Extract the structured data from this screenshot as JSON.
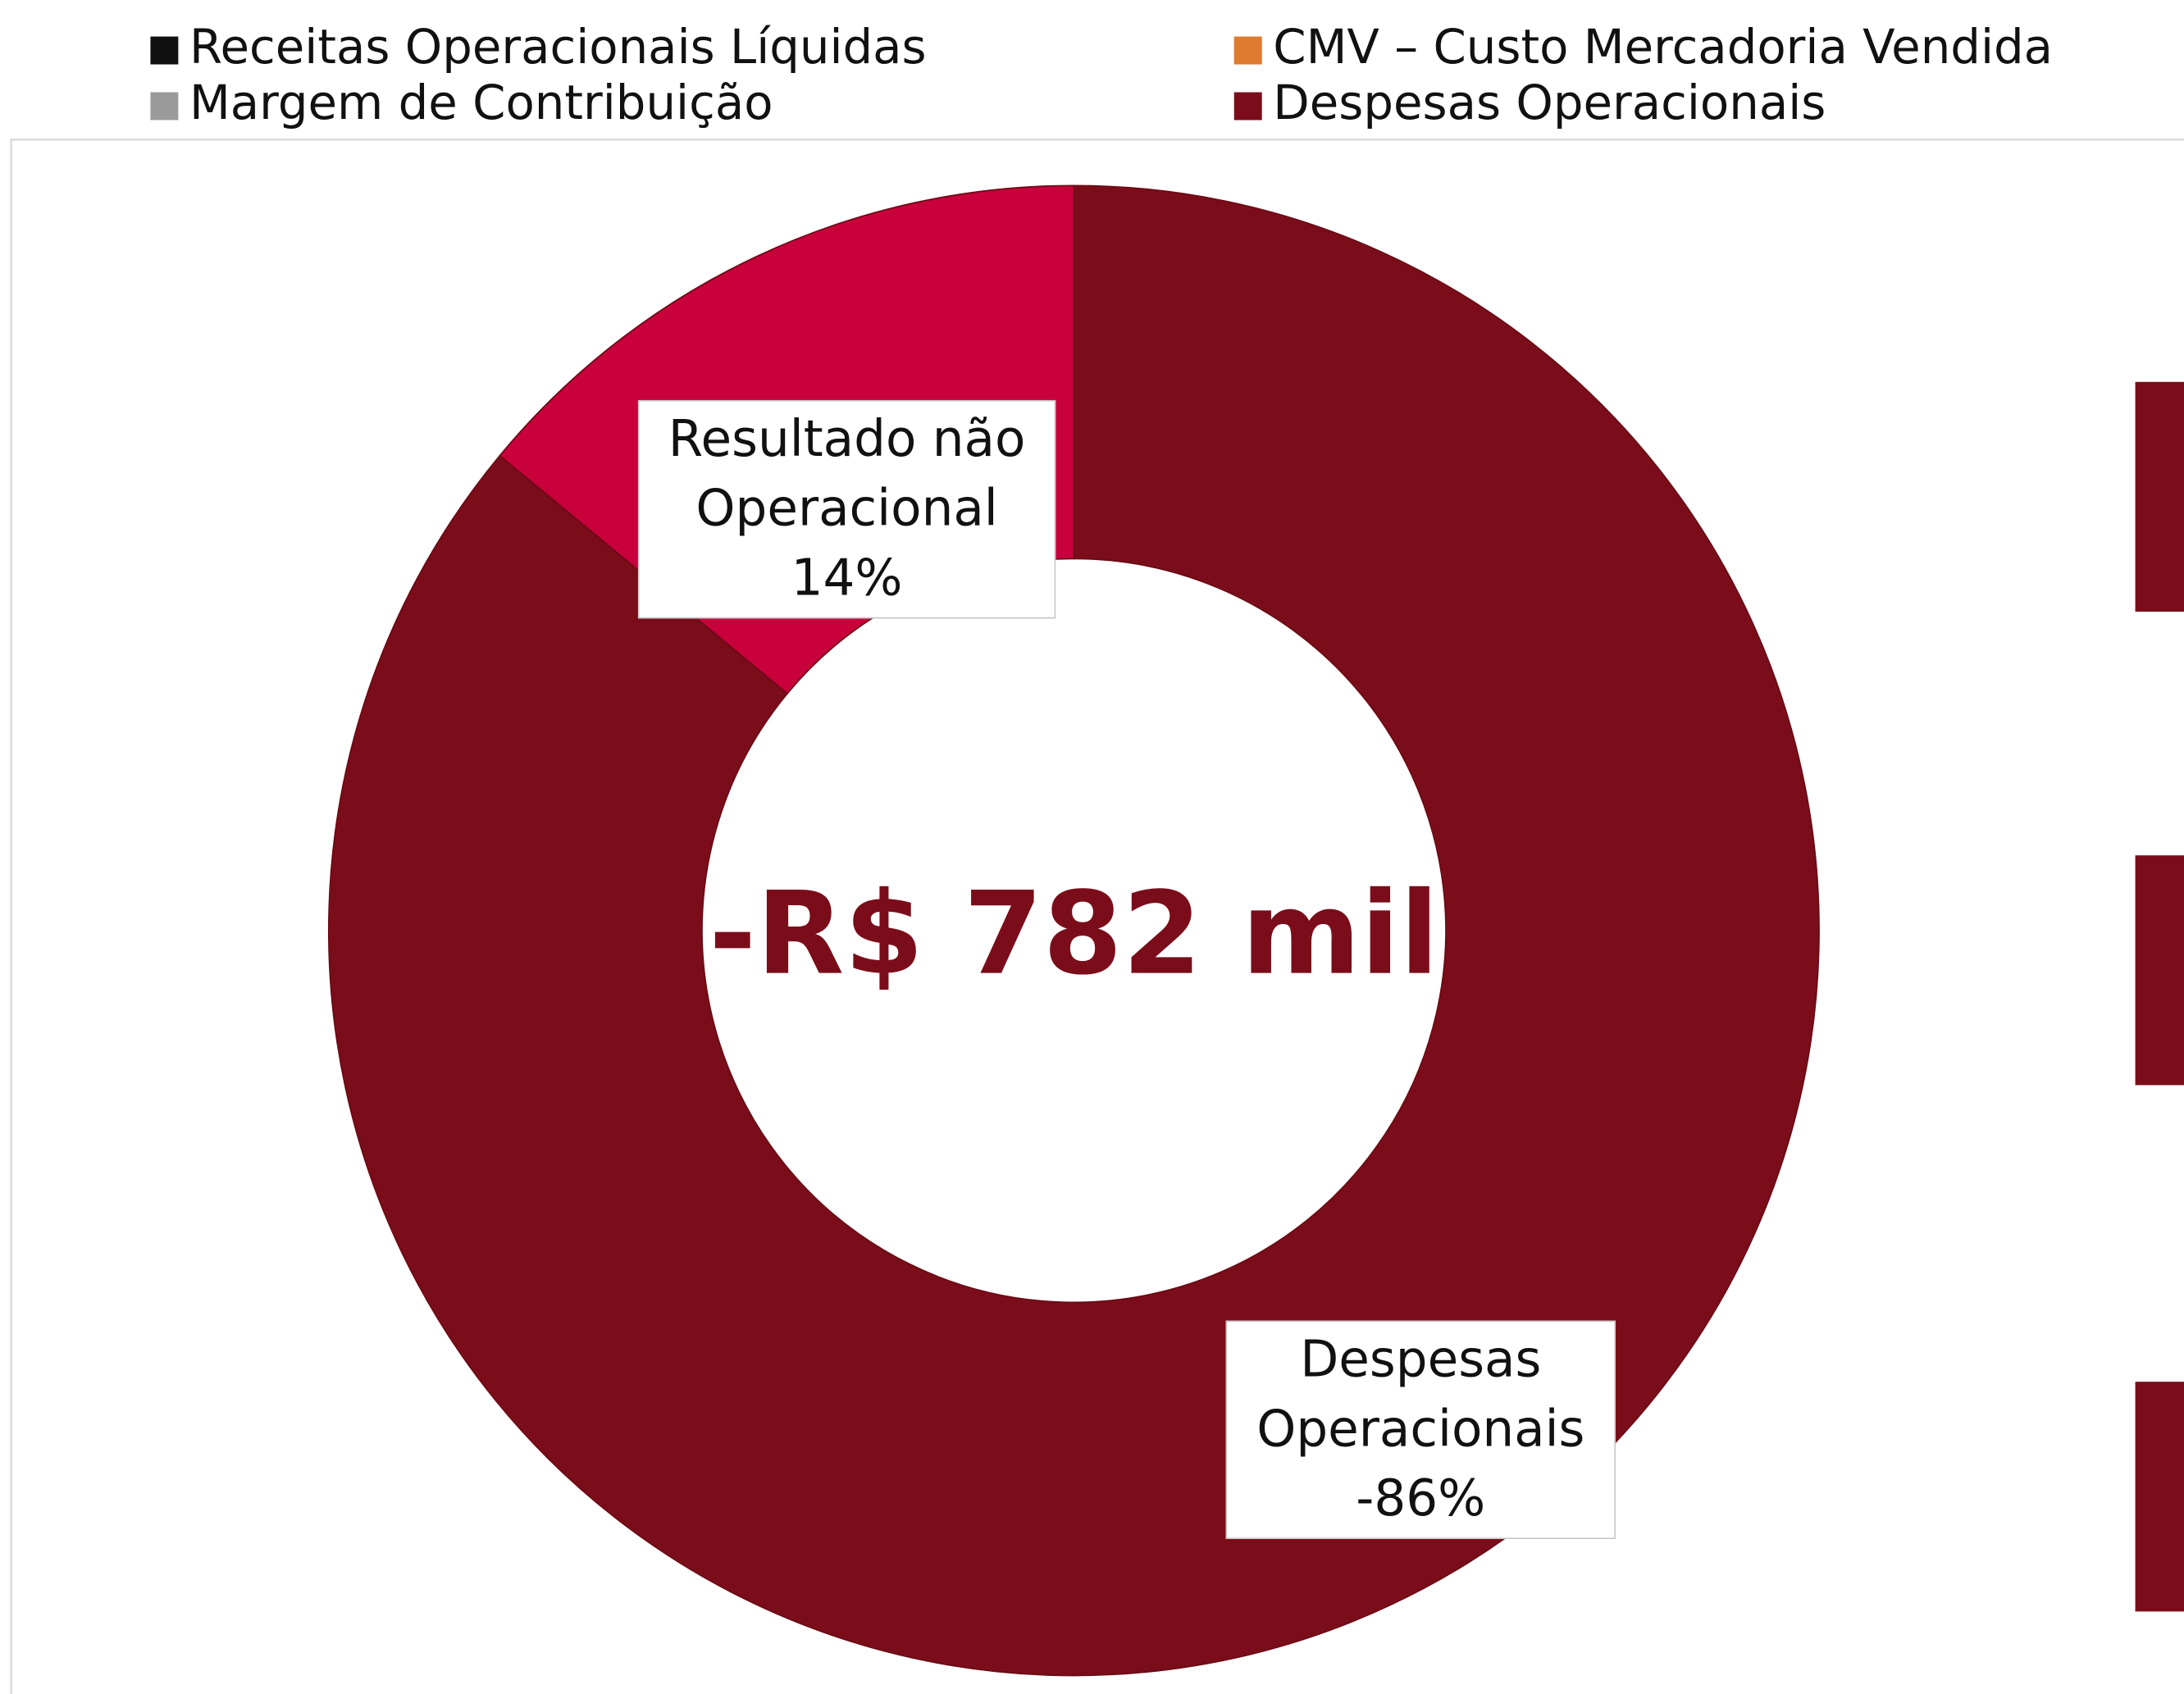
{
  "chart_data": {
    "type": "donut",
    "legend": [
      {
        "name": "Receitas Operacionais Líquidas",
        "color": "#111111"
      },
      {
        "name": "CMV – Custo Mercadoria Vendida",
        "color": "#e07a2e"
      },
      {
        "name": "Margem de Contribuição",
        "color": "#9a9a9a"
      },
      {
        "name": "Despesas Operacionais",
        "color": "#7b0d1a"
      }
    ],
    "slices": [
      {
        "name": "Despesas Operacionais",
        "value": -86,
        "value_label": "-86%",
        "color": "#7b0d1a"
      },
      {
        "name": "Resultado não Operacional",
        "value": 14,
        "value_label": "14%",
        "color": "#c8003c"
      }
    ],
    "center_label": "-R$ 782 mil"
  }
}
